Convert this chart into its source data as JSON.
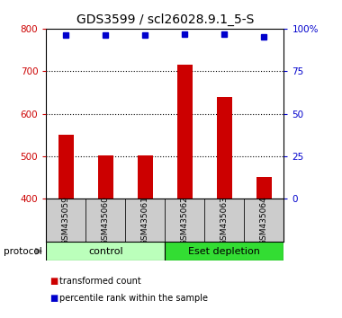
{
  "title": "GDS3599 / scl26028.9.1_5-S",
  "samples": [
    "GSM435059",
    "GSM435060",
    "GSM435061",
    "GSM435062",
    "GSM435063",
    "GSM435064"
  ],
  "transformed_counts": [
    550,
    502,
    502,
    715,
    640,
    452
  ],
  "percentile_ranks": [
    96,
    96,
    96,
    97,
    97,
    95
  ],
  "ylim_left": [
    400,
    800
  ],
  "ylim_right": [
    0,
    100
  ],
  "yticks_left": [
    400,
    500,
    600,
    700,
    800
  ],
  "yticks_right": [
    0,
    25,
    50,
    75,
    100
  ],
  "bar_color": "#cc0000",
  "dot_color": "#0000cc",
  "bar_bottom": 400,
  "groups": [
    {
      "label": "control",
      "indices": [
        0,
        1,
        2
      ],
      "color": "#bbffbb"
    },
    {
      "label": "Eset depletion",
      "indices": [
        3,
        4,
        5
      ],
      "color": "#33dd33"
    }
  ],
  "protocol_label": "protocol",
  "legend_bar_label": "transformed count",
  "legend_dot_label": "percentile rank within the sample",
  "tick_label_area_color": "#cccccc",
  "title_fontsize": 10,
  "tick_fontsize": 7.5,
  "label_fontsize": 6.5
}
